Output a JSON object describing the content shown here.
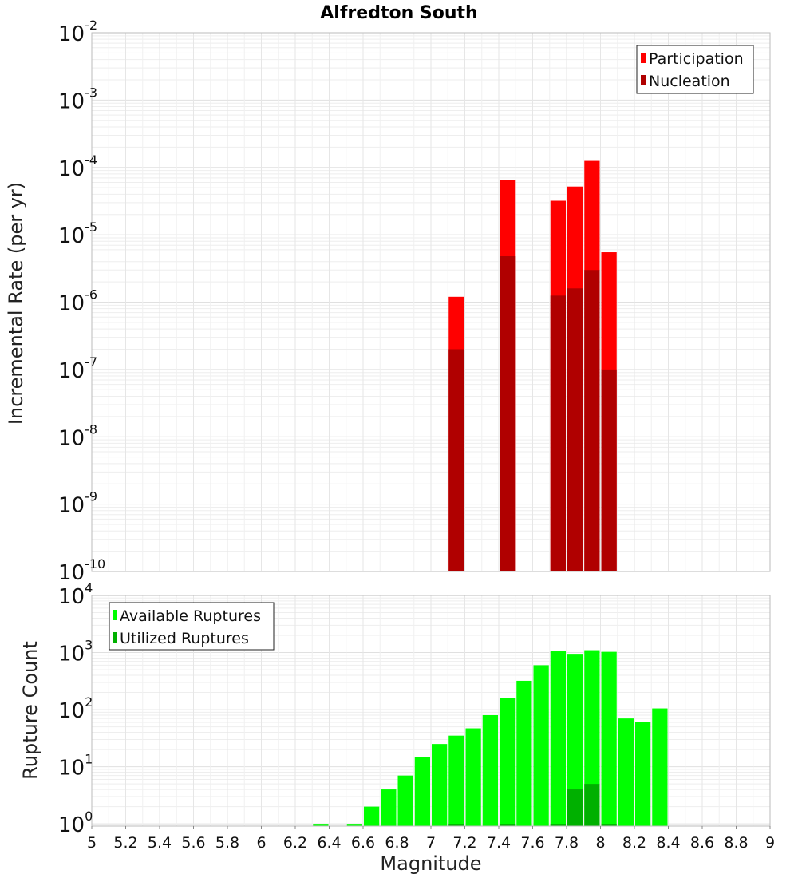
{
  "chart_data": [
    {
      "type": "bar",
      "title": "Alfredton South",
      "xlabel": "",
      "ylabel": "Incremental Rate (per yr)",
      "yscale": "log",
      "ylim_exponents": [
        -10,
        -2
      ],
      "xlim": [
        5,
        9
      ],
      "bar_width": 0.1,
      "grid": true,
      "legend_position": "top-right",
      "colors": {
        "Participation": "#ff0000",
        "Nucleation": "#b00000"
      },
      "y_tick_labels": [
        {
          "base": "10",
          "exp": "-10"
        },
        {
          "base": "10",
          "exp": "-9"
        },
        {
          "base": "10",
          "exp": "-8"
        },
        {
          "base": "10",
          "exp": "-7"
        },
        {
          "base": "10",
          "exp": "-6"
        },
        {
          "base": "10",
          "exp": "-5"
        },
        {
          "base": "10",
          "exp": "-4"
        },
        {
          "base": "10",
          "exp": "-3"
        },
        {
          "base": "10",
          "exp": "-2"
        }
      ],
      "series": [
        {
          "name": "Participation",
          "x": [
            7.15,
            7.45,
            7.75,
            7.85,
            7.95,
            8.05
          ],
          "values": [
            1.2e-06,
            6.5e-05,
            3.2e-05,
            5.2e-05,
            0.000125,
            5.5e-06
          ]
        },
        {
          "name": "Nucleation",
          "x": [
            7.15,
            7.45,
            7.75,
            7.85,
            7.95,
            8.05
          ],
          "values": [
            2e-07,
            4.8e-06,
            1.25e-06,
            1.6e-06,
            3e-06,
            1e-07
          ]
        }
      ]
    },
    {
      "type": "bar",
      "title": "",
      "xlabel": "Magnitude",
      "ylabel": "Rupture Count",
      "yscale": "log",
      "ylim_exponents": [
        -0.04,
        4
      ],
      "xlim": [
        5,
        9
      ],
      "bar_width": 0.1,
      "grid": true,
      "legend_position": "top-left",
      "colors": {
        "Available Ruptures": "#00ff00",
        "Utilized Ruptures": "#00b000"
      },
      "y_tick_labels": [
        {
          "base": "10",
          "exp": "0"
        },
        {
          "base": "10",
          "exp": "1"
        },
        {
          "base": "10",
          "exp": "2"
        },
        {
          "base": "10",
          "exp": "3"
        },
        {
          "base": "10",
          "exp": "4"
        }
      ],
      "x_tick_labels": [
        "5",
        "5.2",
        "5.4",
        "5.6",
        "5.8",
        "6",
        "6.2",
        "6.4",
        "6.6",
        "6.8",
        "7",
        "7.2",
        "7.4",
        "7.6",
        "7.8",
        "8",
        "8.2",
        "8.4",
        "8.6",
        "8.8",
        "9"
      ],
      "series": [
        {
          "name": "Available Ruptures",
          "x": [
            6.35,
            6.55,
            6.65,
            6.75,
            6.85,
            6.95,
            7.05,
            7.15,
            7.25,
            7.35,
            7.45,
            7.55,
            7.65,
            7.75,
            7.85,
            7.95,
            8.05,
            8.15,
            8.25,
            8.35
          ],
          "values": [
            1,
            1,
            2,
            4,
            7,
            15,
            25,
            35,
            47,
            80,
            160,
            320,
            600,
            1050,
            950,
            1100,
            1030,
            70,
            60,
            105
          ]
        },
        {
          "name": "Utilized Ruptures",
          "x": [
            7.15,
            7.45,
            7.75,
            7.85,
            7.95,
            8.05
          ],
          "values": [
            1,
            1,
            1,
            4,
            5,
            1
          ]
        }
      ]
    }
  ]
}
